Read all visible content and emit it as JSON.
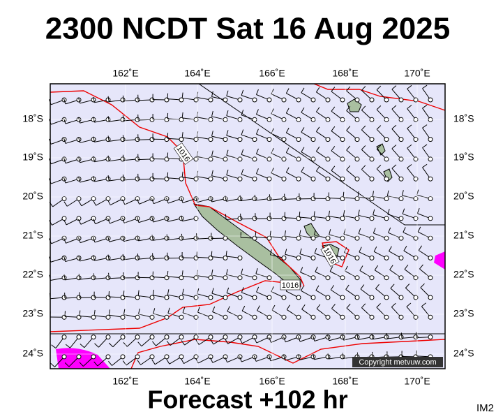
{
  "header": {
    "title": "2300 NCDT Sat 16 Aug 2025"
  },
  "map": {
    "lon_labels": [
      "162˚E",
      "164˚E",
      "166˚E",
      "168˚E",
      "170˚E"
    ],
    "lat_labels": [
      "18˚S",
      "19˚S",
      "20˚S",
      "21˚S",
      "22˚S",
      "23˚S",
      "24˚S"
    ],
    "isobar_labels": [
      "1016",
      "1016",
      "1016"
    ],
    "copyright": "Copyright metvuw.com"
  },
  "footer": {
    "forecast": "Forecast +102 hr",
    "corner": "IM2"
  }
}
